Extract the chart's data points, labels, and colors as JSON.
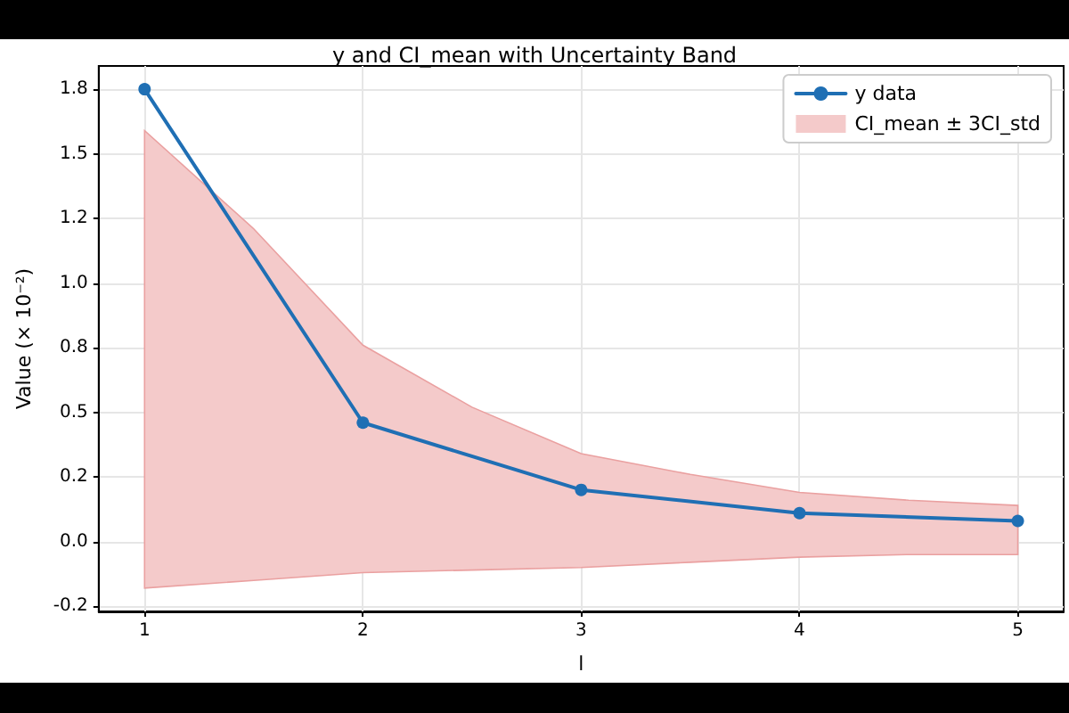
{
  "chart_data": {
    "type": "line",
    "title": "y and CI_mean with Uncertainty Band",
    "xlabel": "l",
    "ylabel": "Value (× 10⁻²)",
    "xlim": [
      0.79,
      5.21
    ],
    "xticks": [
      1,
      2,
      3,
      4,
      5
    ],
    "ylim": [
      -0.27,
      1.84
    ],
    "yticks": [
      {
        "value": -0.25,
        "label": "-0.2"
      },
      {
        "value": 0,
        "label": "0.0"
      },
      {
        "value": 0.25,
        "label": "0.2"
      },
      {
        "value": 0.5,
        "label": "0.5"
      },
      {
        "value": 0.75,
        "label": "0.8"
      },
      {
        "value": 1.0,
        "label": "1.0"
      },
      {
        "value": 1.25,
        "label": "1.2"
      },
      {
        "value": 1.5,
        "label": "1.5"
      },
      {
        "value": 1.75,
        "label": "1.8"
      }
    ],
    "series": [
      {
        "name": "y data",
        "color": "#1f6fb4",
        "x": [
          1,
          2,
          3,
          4,
          5
        ],
        "values": [
          1.75,
          0.46,
          0.2,
          0.11,
          0.08
        ]
      },
      {
        "name": "CI_mean ± 3CI_std",
        "type": "area",
        "color": "#f4caca",
        "x": [
          1,
          1.5,
          2,
          2.5,
          3,
          3.5,
          4,
          4.5,
          5
        ],
        "values": [
          null,
          null,
          null,
          null,
          null,
          null,
          null,
          null,
          null
        ],
        "lower": [
          -0.18,
          -0.15,
          -0.12,
          -0.11,
          -0.1,
          -0.08,
          -0.06,
          -0.05,
          -0.05
        ],
        "upper": [
          1.59,
          1.21,
          0.76,
          0.52,
          0.34,
          0.26,
          0.19,
          0.16,
          0.14
        ]
      }
    ],
    "grid": true,
    "legend": "top right",
    "marker": "circle",
    "line_style": "solid"
  }
}
